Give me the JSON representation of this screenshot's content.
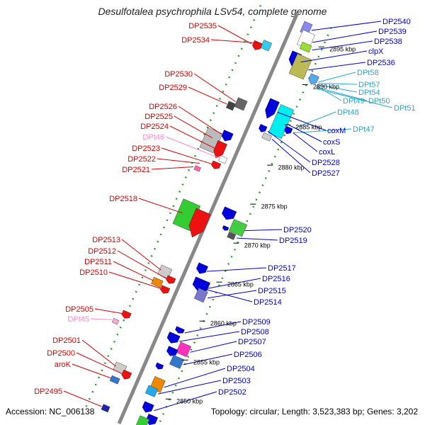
{
  "title": "Desulfotalea psychrophila LSv54, complete genome",
  "footer": {
    "accession": "Accession: NC_006138",
    "topology": "Topology: circular; Length: 3,523,383 bp; Genes: 3,202"
  },
  "colors": {
    "left_label": "#d40000",
    "right_label": "#0000cc",
    "trna_left": "#ff88cc",
    "trna_right": "#22aacc",
    "backbone": "#888888",
    "track_dash": "#2a9a2a"
  },
  "scale_labels": [
    "2895 kbp",
    "2890 kbp",
    "2885 kbp",
    "2880 kbp",
    "2875 kbp",
    "2870 kbp",
    "2865 kbp",
    "2860 kbp",
    "2855 kbp",
    "2850 kbp"
  ],
  "left_labels": [
    "DP2535",
    "DP2534",
    "DP2530",
    "DP2529",
    "DP2526",
    "DP2525",
    "DP2524",
    "DPt46",
    "DP2523",
    "DP2522",
    "DP2521",
    "DP2518",
    "DP2513",
    "DP2512",
    "DP2511",
    "DP2510",
    "DP2505",
    "DPt45",
    "DP2501",
    "DP2500",
    "aroK",
    "DP2495"
  ],
  "right_labels": [
    "DP2540",
    "DP2539",
    "DP2538",
    "clpX",
    "DP2536",
    "DPt58",
    "DPt57",
    "DPt54",
    "DPt49",
    "DPt50",
    "DPt51",
    "DPt48",
    "DPt47",
    "coxM",
    "coxS",
    "coxL",
    "DP2528",
    "DP2527",
    "DP2520",
    "DP2519",
    "DP2517",
    "DP2516",
    "DP2515",
    "DP2514",
    "DP2509",
    "DP2508",
    "DP2507",
    "DP2506",
    "DP2504",
    "DP2503",
    "DP2502"
  ]
}
